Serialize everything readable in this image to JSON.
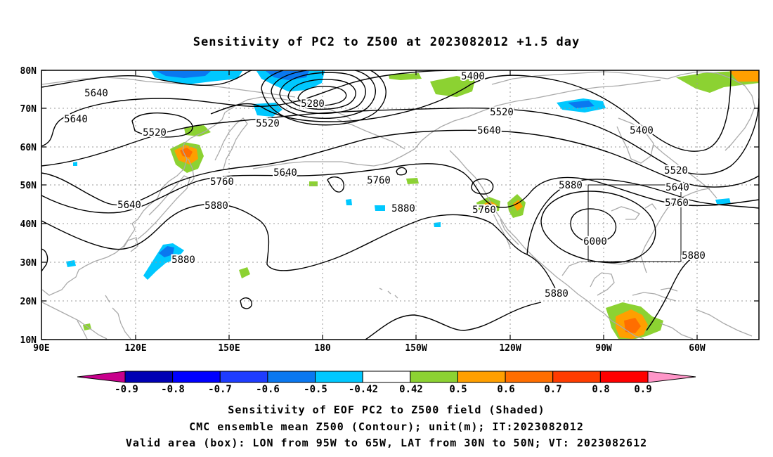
{
  "title": "Sensitivity of PC2 to Z500 at 2023082012 +1.5 day",
  "map": {
    "lat_labels": [
      "80N",
      "70N",
      "60N",
      "50N",
      "40N",
      "30N",
      "20N",
      "10N"
    ],
    "lon_labels": [
      "90E",
      "120E",
      "150E",
      "180",
      "150W",
      "120W",
      "90W",
      "60W"
    ],
    "contour_labels": [
      "5640",
      "5640",
      "5520",
      "5280",
      "5520",
      "5400",
      "5520",
      "5640",
      "5400",
      "5520",
      "5640",
      "5760",
      "5640",
      "5760",
      "5880",
      "5760",
      "5640",
      "5760",
      "5880",
      "5880",
      "5880",
      "6000",
      "5880",
      "5880"
    ],
    "valid_box": {
      "lon_from": "95W",
      "lon_to": "65W",
      "lat_from": "30N",
      "lat_to": "50N"
    }
  },
  "colorbar": {
    "labels": [
      "-0.9",
      "-0.8",
      "-0.7",
      "-0.6",
      "-0.5",
      "-0.42",
      "0.42",
      "0.5",
      "0.6",
      "0.7",
      "0.8",
      "0.9"
    ],
    "colors": [
      "#0000b4",
      "#0000ff",
      "#1e3cff",
      "#0a78f0",
      "#00c8ff",
      "#ffffff",
      "#8cd232",
      "#ff9f00",
      "#ff6e00",
      "#ff3c00",
      "#ff0000"
    ],
    "low_end_color": "#c8008c",
    "high_end_color": "#ff96c8"
  },
  "captions": [
    "Sensitivity of EOF PC2 to Z500 field (Shaded)",
    "CMC ensemble mean Z500 (Contour); unit(m); IT:2023082012",
    "Valid area (box): LON from 95W to 65W, LAT from 30N to 50N; VT: 2023082612"
  ]
}
